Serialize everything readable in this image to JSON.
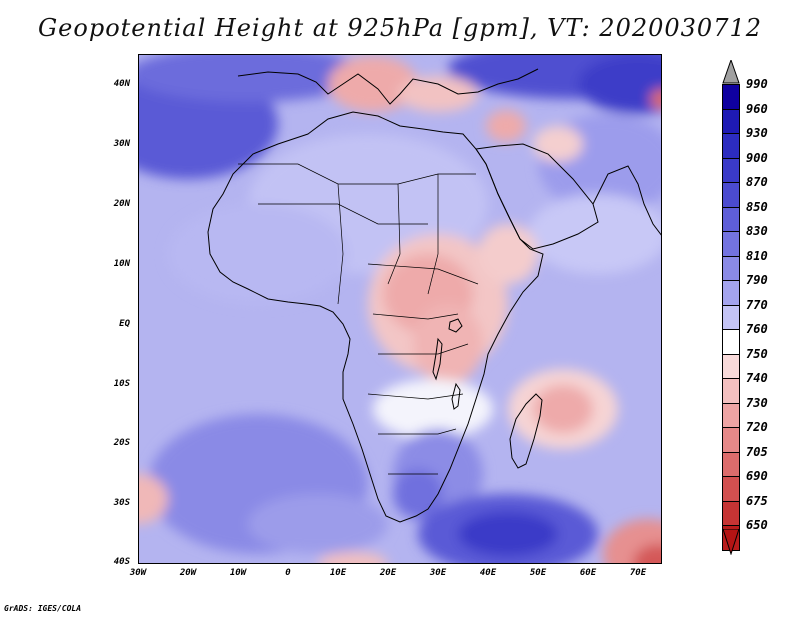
{
  "title": "Geopotential Height at 925hPa [gpm], VT: 2020030712",
  "footer": "GrADS: IGES/COLA",
  "map": {
    "variable": "Geopotential Height at 925hPa",
    "units": "gpm",
    "valid_time": "2020030712",
    "lon_range": [
      -30,
      75
    ],
    "lat_range": [
      -40,
      45
    ],
    "lat_labels": [
      "40N",
      "30N",
      "20N",
      "10N",
      "EQ",
      "10S",
      "20S",
      "30S",
      "40S"
    ],
    "lon_labels": [
      "30W",
      "20W",
      "10W",
      "0",
      "10E",
      "20E",
      "30E",
      "40E",
      "50E",
      "60E",
      "70E"
    ]
  },
  "legend": {
    "levels": [
      "990",
      "960",
      "930",
      "900",
      "870",
      "850",
      "830",
      "810",
      "790",
      "770",
      "760",
      "750",
      "740",
      "730",
      "720",
      "705",
      "690",
      "675",
      "650"
    ],
    "colors": [
      "#0f00a0",
      "#1e1ab4",
      "#2c2cc0",
      "#3a3ac8",
      "#4b4bd0",
      "#5e5ed8",
      "#7373e0",
      "#8a8ae6",
      "#a4a4ee",
      "#c4c4f6",
      "#ffffff",
      "#f8dada",
      "#f4c0c0",
      "#eea4a4",
      "#e68888",
      "#dc6c6c",
      "#d25050",
      "#c63434",
      "#b81c1c"
    ],
    "top_triangle_color": "#a0a0a0",
    "bottom_triangle_color": "#b41414"
  }
}
